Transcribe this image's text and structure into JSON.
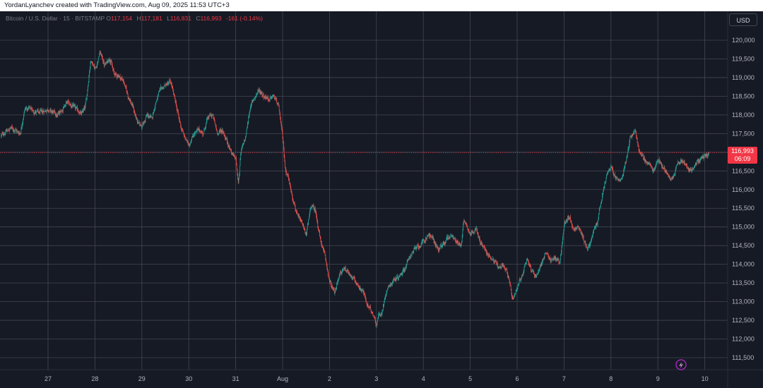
{
  "header": {
    "credit": "YordanLyanchev created with TradingView.com, Aug 09, 2025 11:53 UTC+3"
  },
  "legend": {
    "symbol": "Bitcoin / U.S. Dollar · 15 · BITSTAMP",
    "open_key": "O",
    "open": "117,154",
    "high_key": "H",
    "high": "117,181",
    "low_key": "L",
    "low": "116,831",
    "close_key": "C",
    "close": "116,993",
    "change": "-161 (-0.14%)"
  },
  "axis": {
    "currency": "USD"
  },
  "price_badge": {
    "price": "116,993",
    "countdown": "06:09"
  },
  "colors": {
    "up": "#26a69a",
    "down": "#ef5350",
    "background": "#161a25",
    "grid": "#434651",
    "price_line": "#f23645"
  },
  "icons": [
    "tradingview-logo-icon"
  ],
  "chart_data": {
    "type": "candlestick",
    "yticks": [
      "120,000",
      "119,500",
      "119,000",
      "118,500",
      "118,000",
      "117,500",
      "117,000",
      "116,500",
      "116,000",
      "115,500",
      "115,000",
      "114,500",
      "114,000",
      "113,500",
      "113,000",
      "112,500",
      "112,000",
      "111,500"
    ],
    "ylim": [
      111300,
      120400
    ],
    "xticks": [
      "27",
      "28",
      "29",
      "30",
      "31",
      "Aug",
      "2",
      "3",
      "4",
      "5",
      "6",
      "7",
      "8",
      "9",
      "10"
    ],
    "x_range_days": [
      26.0,
      41.2
    ],
    "last_price": 116993,
    "grid": true,
    "path": [
      [
        26.0,
        117450
      ],
      [
        26.2,
        117650
      ],
      [
        26.4,
        117500
      ],
      [
        26.5,
        118200
      ],
      [
        26.8,
        118050
      ],
      [
        27.0,
        118150
      ],
      [
        27.2,
        118000
      ],
      [
        27.4,
        118350
      ],
      [
        27.6,
        118150
      ],
      [
        27.7,
        118000
      ],
      [
        27.8,
        118300
      ],
      [
        27.9,
        119500
      ],
      [
        28.0,
        119200
      ],
      [
        28.1,
        119700
      ],
      [
        28.2,
        119300
      ],
      [
        28.3,
        119550
      ],
      [
        28.4,
        119100
      ],
      [
        28.5,
        119050
      ],
      [
        28.6,
        118900
      ],
      [
        28.7,
        118500
      ],
      [
        28.8,
        118200
      ],
      [
        28.9,
        117800
      ],
      [
        29.0,
        117700
      ],
      [
        29.1,
        118000
      ],
      [
        29.2,
        117900
      ],
      [
        29.3,
        118400
      ],
      [
        29.4,
        118700
      ],
      [
        29.5,
        118800
      ],
      [
        29.6,
        118900
      ],
      [
        29.7,
        118400
      ],
      [
        29.8,
        117800
      ],
      [
        29.9,
        117400
      ],
      [
        30.0,
        117200
      ],
      [
        30.1,
        117500
      ],
      [
        30.2,
        117600
      ],
      [
        30.3,
        117500
      ],
      [
        30.4,
        117950
      ],
      [
        30.5,
        118000
      ],
      [
        30.6,
        117500
      ],
      [
        30.7,
        117600
      ],
      [
        30.8,
        117300
      ],
      [
        30.9,
        117000
      ],
      [
        31.0,
        116800
      ],
      [
        31.05,
        116100
      ],
      [
        31.1,
        117000
      ],
      [
        31.2,
        117400
      ],
      [
        31.3,
        118200
      ],
      [
        31.4,
        118500
      ],
      [
        31.5,
        118650
      ],
      [
        31.6,
        118500
      ],
      [
        31.7,
        118400
      ],
      [
        31.8,
        118500
      ],
      [
        31.9,
        118300
      ],
      [
        32.0,
        117300
      ],
      [
        32.05,
        116500
      ],
      [
        32.1,
        116400
      ],
      [
        32.2,
        115800
      ],
      [
        32.3,
        115300
      ],
      [
        32.4,
        115100
      ],
      [
        32.5,
        114800
      ],
      [
        32.6,
        115600
      ],
      [
        32.7,
        115400
      ],
      [
        32.8,
        114600
      ],
      [
        32.9,
        114200
      ],
      [
        33.0,
        113500
      ],
      [
        33.1,
        113200
      ],
      [
        33.2,
        113700
      ],
      [
        33.3,
        113900
      ],
      [
        33.4,
        113800
      ],
      [
        33.5,
        113600
      ],
      [
        33.6,
        113400
      ],
      [
        33.7,
        113300
      ],
      [
        33.8,
        112900
      ],
      [
        33.9,
        112700
      ],
      [
        34.0,
        112400
      ],
      [
        34.05,
        112700
      ],
      [
        34.1,
        112600
      ],
      [
        34.2,
        113300
      ],
      [
        34.3,
        113500
      ],
      [
        34.4,
        113600
      ],
      [
        34.5,
        113700
      ],
      [
        34.6,
        113900
      ],
      [
        34.7,
        114200
      ],
      [
        34.8,
        114400
      ],
      [
        34.9,
        114500
      ],
      [
        35.0,
        114600
      ],
      [
        35.1,
        114800
      ],
      [
        35.2,
        114700
      ],
      [
        35.3,
        114400
      ],
      [
        35.4,
        114500
      ],
      [
        35.5,
        114700
      ],
      [
        35.6,
        114800
      ],
      [
        35.7,
        114600
      ],
      [
        35.8,
        114500
      ],
      [
        35.85,
        115200
      ],
      [
        35.9,
        115100
      ],
      [
        36.0,
        114800
      ],
      [
        36.1,
        115000
      ],
      [
        36.2,
        114600
      ],
      [
        36.3,
        114400
      ],
      [
        36.4,
        114200
      ],
      [
        36.5,
        114100
      ],
      [
        36.6,
        113900
      ],
      [
        36.7,
        114000
      ],
      [
        36.8,
        113700
      ],
      [
        36.9,
        113000
      ],
      [
        37.0,
        113400
      ],
      [
        37.1,
        113700
      ],
      [
        37.2,
        114200
      ],
      [
        37.3,
        113800
      ],
      [
        37.4,
        113700
      ],
      [
        37.5,
        114000
      ],
      [
        37.6,
        114300
      ],
      [
        37.7,
        114100
      ],
      [
        37.8,
        114200
      ],
      [
        37.9,
        114000
      ],
      [
        38.0,
        115100
      ],
      [
        38.1,
        115300
      ],
      [
        38.2,
        114900
      ],
      [
        38.3,
        115000
      ],
      [
        38.4,
        114700
      ],
      [
        38.5,
        114400
      ],
      [
        38.6,
        114800
      ],
      [
        38.7,
        115100
      ],
      [
        38.8,
        115800
      ],
      [
        38.9,
        116400
      ],
      [
        39.0,
        116600
      ],
      [
        39.1,
        116300
      ],
      [
        39.2,
        116200
      ],
      [
        39.3,
        116700
      ],
      [
        39.4,
        117400
      ],
      [
        39.5,
        117600
      ],
      [
        39.6,
        117000
      ],
      [
        39.7,
        116800
      ],
      [
        39.8,
        116700
      ],
      [
        39.9,
        116500
      ],
      [
        40.0,
        116800
      ],
      [
        40.1,
        116600
      ],
      [
        40.2,
        116400
      ],
      [
        40.3,
        116300
      ],
      [
        40.4,
        116700
      ],
      [
        40.5,
        116800
      ],
      [
        40.6,
        116600
      ],
      [
        40.7,
        116500
      ],
      [
        40.8,
        116700
      ],
      [
        40.9,
        116800
      ],
      [
        41.0,
        116900
      ],
      [
        41.1,
        116993
      ]
    ]
  }
}
